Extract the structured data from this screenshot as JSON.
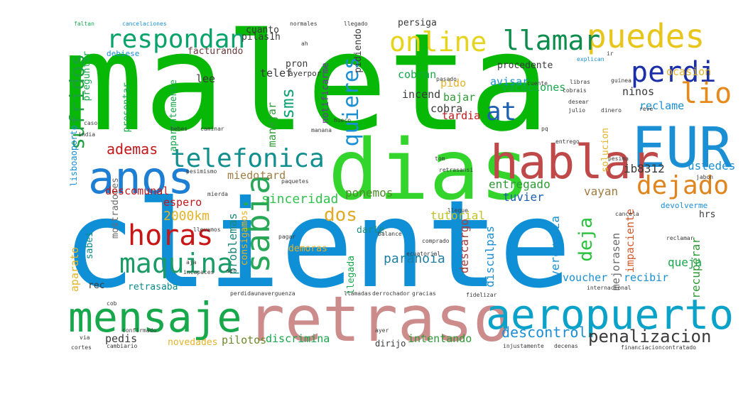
{
  "title": "",
  "words": [
    {
      "text": "maleta",
      "color": "#07b807",
      "weight": 1.0
    },
    {
      "text": "cliente",
      "color": "#0f8fd6",
      "weight": 1.0
    },
    {
      "text": "dias",
      "color": "#33d42c",
      "weight": 0.72
    },
    {
      "text": "retraso",
      "color": "#cc8c8c",
      "weight": 0.6
    },
    {
      "text": "EUR",
      "color": "#1a8fd4",
      "weight": 0.5
    },
    {
      "text": "hablar",
      "color": "#bf4848",
      "weight": 0.45
    },
    {
      "text": "anos",
      "color": "#1c7fd3",
      "weight": 0.42
    },
    {
      "text": "aeropuerto",
      "color": "#0aa2c8",
      "weight": 0.4
    },
    {
      "text": "mensaje",
      "color": "#16a84b",
      "weight": 0.4
    },
    {
      "text": "telefonica",
      "color": "#118f8f",
      "weight": 0.3
    },
    {
      "text": "sabia",
      "color": "#28a856",
      "weight": 0.32
    },
    {
      "text": "horas",
      "color": "#c91515",
      "weight": 0.28
    },
    {
      "text": "maquina",
      "color": "#1b9b67",
      "weight": 0.28
    },
    {
      "text": "puedes",
      "color": "#e7c51b",
      "weight": 0.33
    },
    {
      "text": "perdi",
      "color": "#1a2fa8",
      "weight": 0.29
    },
    {
      "text": "llamar",
      "color": "#0c8c4c",
      "weight": 0.28
    },
    {
      "text": "online",
      "color": "#e5d41b",
      "weight": 0.28
    },
    {
      "text": "respondan",
      "color": "#0aa36b",
      "weight": 0.28
    },
    {
      "text": "lio",
      "color": "#e58a1b",
      "weight": 0.26
    },
    {
      "text": "dejado",
      "color": "#e0851e",
      "weight": 0.22
    },
    {
      "text": "at",
      "color": "#1c5fb0",
      "weight": 0.22
    },
    {
      "text": "quieres",
      "color": "#1a8fd4",
      "weight": 0.2
    },
    {
      "text": "sufridos",
      "color": "#1ba03e",
      "weight": 0.2
    },
    {
      "text": "sms",
      "color": "#10a373",
      "weight": 0.17
    },
    {
      "text": "dos",
      "color": "#e1aa25",
      "weight": 0.17
    },
    {
      "text": "penalizacion",
      "color": "#3a3a3a",
      "weight": 0.17
    },
    {
      "text": "deja",
      "color": "#28c23d",
      "weight": 0.17
    },
    {
      "text": "descontrol",
      "color": "#1a8fd4",
      "weight": 0.14
    },
    {
      "text": "ademas",
      "color": "#c3171a",
      "weight": 0.14
    },
    {
      "text": "2000km",
      "color": "#e3b32a",
      "weight": 0.13
    },
    {
      "text": "paranoia",
      "color": "#1e7fa0",
      "weight": 0.13
    },
    {
      "text": "sinceridad",
      "color": "#31c24d",
      "weight": 0.13
    },
    {
      "text": "ponemos",
      "color": "#4d8c2a",
      "weight": 0.12
    },
    {
      "text": "tutorial",
      "color": "#c1c124",
      "weight": 0.12
    },
    {
      "text": "tuvier",
      "color": "#1b5fb0",
      "weight": 0.12
    },
    {
      "text": "vayan",
      "color": "#a07b41",
      "weight": 0.12
    },
    {
      "text": "ib8312",
      "color": "#3a3a3a",
      "weight": 0.12
    },
    {
      "text": "ustedes",
      "color": "#1a8fd4",
      "weight": 0.12
    },
    {
      "text": "entregado",
      "color": "#2d9a35",
      "weight": 0.12
    },
    {
      "text": "problemas",
      "color": "#1b8a7b",
      "weight": 0.12
    },
    {
      "text": "consigamos",
      "color": "#e3b32a",
      "weight": 0.1
    },
    {
      "text": "descargo",
      "color": "#a93b3b",
      "weight": 0.12
    },
    {
      "text": "disculpas",
      "color": "#1a8fd4",
      "weight": 0.12
    },
    {
      "text": "verguenza",
      "color": "#1a8fd4",
      "weight": 0.12
    },
    {
      "text": "mejorasen",
      "color": "#6b6b6b",
      "weight": 0.12
    },
    {
      "text": "impaciente",
      "color": "#d45a2d",
      "weight": 0.12
    },
    {
      "text": "recuperar",
      "color": "#2d9a35",
      "weight": 0.12
    },
    {
      "text": "queja",
      "color": "#16a84b",
      "weight": 0.12
    },
    {
      "text": "recibir",
      "color": "#1a8fd4",
      "weight": 0.12
    },
    {
      "text": "voucher",
      "color": "#1a8fd4",
      "weight": 0.12
    },
    {
      "text": "intentando",
      "color": "#2d9a35",
      "weight": 0.12
    },
    {
      "text": "discrimina",
      "color": "#16a84b",
      "weight": 0.12
    },
    {
      "text": "pilotos",
      "color": "#6b8a2a",
      "weight": 0.12
    },
    {
      "text": "novedades",
      "color": "#e3b32a",
      "weight": 0.1
    },
    {
      "text": "pedis",
      "color": "#3a3a3a",
      "weight": 0.12
    },
    {
      "text": "aparato",
      "color": "#e3b32a",
      "weight": 0.12
    },
    {
      "text": "sabei",
      "color": "#0a8a8a",
      "weight": 0.1
    },
    {
      "text": "rec",
      "color": "#3a3a3a",
      "weight": 0.1
    },
    {
      "text": "retrasaba",
      "color": "#0a8a8a",
      "weight": 0.1
    },
    {
      "text": "demoras",
      "color": "#e3b32a",
      "weight": 0.1
    },
    {
      "text": "llegada",
      "color": "#16a84b",
      "weight": 0.1
    },
    {
      "text": "darle",
      "color": "#1b8a7b",
      "weight": 0.1
    },
    {
      "text": "mostradores",
      "color": "#6b6b6b",
      "weight": 0.1
    },
    {
      "text": "espero",
      "color": "#c3171a",
      "weight": 0.1
    },
    {
      "text": "descomunal",
      "color": "#c3171a",
      "weight": 0.1
    },
    {
      "text": "miedo",
      "color": "#a07b41",
      "weight": 0.1
    },
    {
      "text": "tard",
      "color": "#a07b41",
      "weight": 0.1
    },
    {
      "text": "tardia",
      "color": "#c3171a",
      "weight": 0.1
    },
    {
      "text": "incend",
      "color": "#3a3a3a",
      "weight": 0.1
    },
    {
      "text": "avisar",
      "color": "#1a8fd4",
      "weight": 0.1
    },
    {
      "text": "cobra",
      "color": "#3a3a3a",
      "weight": 0.1
    },
    {
      "text": "pido",
      "color": "#e3b32a",
      "weight": 0.1
    },
    {
      "text": "bajar",
      "color": "#2d9a35",
      "weight": 0.1
    },
    {
      "text": "cobran",
      "color": "#16a84b",
      "weight": 0.1
    },
    {
      "text": "vacaciones",
      "color": "#16a84b",
      "weight": 0.1
    },
    {
      "text": "ninos",
      "color": "#3a3a3a",
      "weight": 0.1
    },
    {
      "text": "reclame",
      "color": "#1a8fd4",
      "weight": 0.1
    },
    {
      "text": "ocasion",
      "color": "#e3b32a",
      "weight": 0.1
    },
    {
      "text": "manejar",
      "color": "#2d9a35",
      "weight": 0.1
    },
    {
      "text": "lee",
      "color": "#3a3a3a",
      "weight": 0.1
    },
    {
      "text": "telef",
      "color": "#3a3a3a",
      "weight": 0.1
    },
    {
      "text": "pron",
      "color": "#3a3a3a",
      "weight": 0.1
    },
    {
      "text": "ayerpor",
      "color": "#3a3a3a",
      "weight": 0.08
    },
    {
      "text": "facturando",
      "color": "#6b3a3a",
      "weight": 0.1
    },
    {
      "text": "pilas1h",
      "color": "#3a3a3a",
      "weight": 0.1
    },
    {
      "text": "cuanto",
      "color": "#3a3a3a",
      "weight": 0.1
    },
    {
      "text": "pidiendo",
      "color": "#3a3a3a",
      "weight": 0.1
    },
    {
      "text": "persiga",
      "color": "#3a3a3a",
      "weight": 0.1
    },
    {
      "text": "procedente",
      "color": "#3a3a3a",
      "weight": 0.1
    },
    {
      "text": "notificarme",
      "color": "#6b3a9a",
      "weight": 0.1
    },
    {
      "text": "debiese",
      "color": "#1a8fd4",
      "weight": 0.1
    },
    {
      "text": "preguntar",
      "color": "#16a84b",
      "weight": 0.1
    },
    {
      "text": "presentar",
      "color": "#16a84b",
      "weight": 0.1
    },
    {
      "text": "aparentemente",
      "color": "#16a84b",
      "weight": 0.1
    },
    {
      "text": "hrs",
      "color": "#3a3a3a",
      "weight": 0.1
    },
    {
      "text": "devolverme",
      "color": "#1a8fd4",
      "weight": 0.08
    },
    {
      "text": "solucion",
      "color": "#e3b32a",
      "weight": 0.1
    },
    {
      "text": "faltan",
      "color": "#16a84b",
      "weight": 0.05
    },
    {
      "text": "cancelaciones",
      "color": "#1a8fd4",
      "weight": 0.05
    },
    {
      "text": "llegado",
      "color": "#3a3a3a",
      "weight": 0.05
    },
    {
      "text": "pasado",
      "color": "#3a3a3a",
      "weight": 0.05
    },
    {
      "text": "explican",
      "color": "#1a8fd4",
      "weight": 0.05
    },
    {
      "text": "ir",
      "color": "#3a3a3a",
      "weight": 0.05
    },
    {
      "text": "cuente",
      "color": "#3a3a3a",
      "weight": 0.05
    },
    {
      "text": "libras",
      "color": "#3a3a3a",
      "weight": 0.05
    },
    {
      "text": "cobrais",
      "color": "#3a3a3a",
      "weight": 0.05
    },
    {
      "text": "desear",
      "color": "#3a3a3a",
      "weight": 0.05
    },
    {
      "text": "julio",
      "color": "#3a3a3a",
      "weight": 0.05
    },
    {
      "text": "dinero",
      "color": "#3a3a3a",
      "weight": 0.05
    },
    {
      "text": "reve",
      "color": "#3a3a3a",
      "weight": 0.05
    },
    {
      "text": "guinea",
      "color": "#3a3a3a",
      "weight": 0.05
    },
    {
      "text": "bebes",
      "color": "#3a3a3a",
      "weight": 0.05
    },
    {
      "text": "caminar",
      "color": "#3a3a3a",
      "weight": 0.05
    },
    {
      "text": "pq",
      "color": "#3a3a3a",
      "weight": 0.05
    },
    {
      "text": "entrego",
      "color": "#3a3a3a",
      "weight": 0.05
    },
    {
      "text": "pesima",
      "color": "#3a3a3a",
      "weight": 0.05
    },
    {
      "text": "jabon",
      "color": "#3a3a3a",
      "weight": 0.05
    },
    {
      "text": "cancela",
      "color": "#3a3a3a",
      "weight": 0.05
    },
    {
      "text": "reclamar",
      "color": "#3a3a3a",
      "weight": 0.05
    },
    {
      "text": "ecuatorial",
      "color": "#3a3a3a",
      "weight": 0.05
    },
    {
      "text": "llegue",
      "color": "#3a3a3a",
      "weight": 0.05
    },
    {
      "text": "hueco",
      "color": "#3a3a3a",
      "weight": 0.05
    },
    {
      "text": "tom",
      "color": "#3a3a3a",
      "weight": 0.05
    },
    {
      "text": "retrasansi",
      "color": "#3a3a3a",
      "weight": 0.05
    },
    {
      "text": "paquetes",
      "color": "#3a3a3a",
      "weight": 0.05
    },
    {
      "text": "pesimismo",
      "color": "#3a3a3a",
      "weight": 0.05
    },
    {
      "text": "mierda",
      "color": "#3a3a3a",
      "weight": 0.05
    },
    {
      "text": "llevamos",
      "color": "#3a3a3a",
      "weight": 0.05
    },
    {
      "text": "pagar",
      "color": "#3a3a3a",
      "weight": 0.05
    },
    {
      "text": "balance",
      "color": "#3a3a3a",
      "weight": 0.05
    },
    {
      "text": "comprado",
      "color": "#3a3a3a",
      "weight": 0.05
    },
    {
      "text": "india",
      "color": "#3a3a3a",
      "weight": 0.05
    },
    {
      "text": "caso",
      "color": "#3a3a3a",
      "weight": 0.05
    },
    {
      "text": "lisboaoporto",
      "color": "#1a8fd4",
      "weight": 0.08
    },
    {
      "text": "perdidaunaverguenza",
      "color": "#3a3a3a",
      "weight": 0.05
    },
    {
      "text": "llamadas",
      "color": "#3a3a3a",
      "weight": 0.05
    },
    {
      "text": "derrochador",
      "color": "#3a3a3a",
      "weight": 0.05
    },
    {
      "text": "gracias",
      "color": "#3a3a3a",
      "weight": 0.05
    },
    {
      "text": "confirmado",
      "color": "#3a3a3a",
      "weight": 0.05
    },
    {
      "text": "cambiario",
      "color": "#3a3a3a",
      "weight": 0.05
    },
    {
      "text": "injustamente",
      "color": "#3a3a3a",
      "weight": 0.05
    },
    {
      "text": "decenas",
      "color": "#3a3a3a",
      "weight": 0.05
    },
    {
      "text": "financiacioncontratado",
      "color": "#3a3a3a",
      "weight": 0.05
    },
    {
      "text": "cortes",
      "color": "#3a3a3a",
      "weight": 0.05
    },
    {
      "text": "via",
      "color": "#3a3a3a",
      "weight": 0.05
    },
    {
      "text": "ayer",
      "color": "#3a3a3a",
      "weight": 0.05
    },
    {
      "text": "dirijo",
      "color": "#3a3a3a",
      "weight": 0.07
    },
    {
      "text": "ser",
      "color": "#3a3a3a",
      "weight": 0.05
    },
    {
      "text": "incapaces",
      "color": "#3a3a3a",
      "weight": 0.05
    },
    {
      "text": "aja",
      "color": "#3a3a3a",
      "weight": 0.05
    },
    {
      "text": "cob",
      "color": "#3a3a3a",
      "weight": 0.05
    },
    {
      "text": "internacional",
      "color": "#3a3a3a",
      "weight": 0.05
    },
    {
      "text": "fidelizar",
      "color": "#3a3a3a",
      "weight": 0.05
    },
    {
      "text": "ah",
      "color": "#3a3a3a",
      "weight": 0.05
    },
    {
      "text": "normales",
      "color": "#3a3a3a",
      "weight": 0.05
    },
    {
      "text": "manana",
      "color": "#3a3a3a",
      "weight": 0.05
    }
  ]
}
